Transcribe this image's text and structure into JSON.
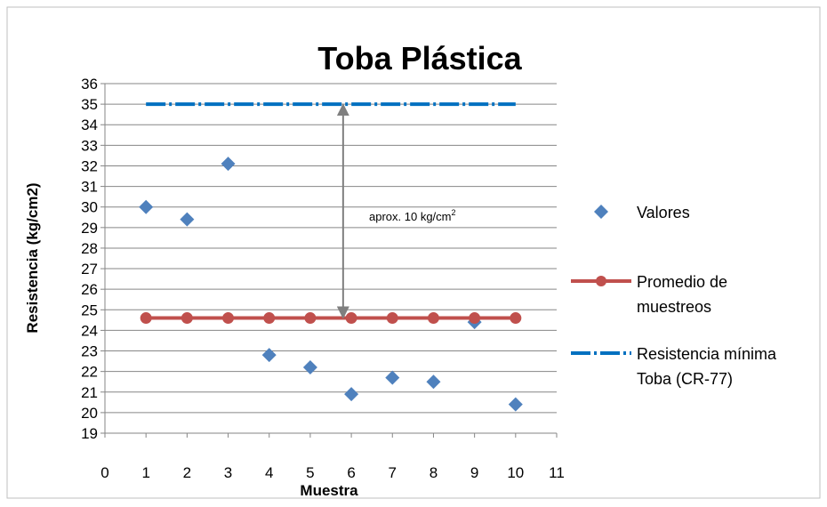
{
  "chart_data": {
    "type": "scatter",
    "title": "Toba Plástica",
    "xlabel": "Muestra",
    "ylabel": "Resistencia (kg/cm2)",
    "xlim": [
      0,
      11
    ],
    "ylim": [
      19,
      36
    ],
    "x_ticks": [
      "0",
      "1",
      "2",
      "3",
      "4",
      "5",
      "6",
      "7",
      "8",
      "9",
      "10",
      "11"
    ],
    "y_ticks": [
      "19",
      "20",
      "21",
      "22",
      "23",
      "24",
      "25",
      "26",
      "27",
      "28",
      "29",
      "30",
      "31",
      "32",
      "33",
      "34",
      "35",
      "36"
    ],
    "grid": true,
    "legend_position": "right",
    "series": [
      {
        "name": "Valores",
        "kind": "markers",
        "marker": "diamond",
        "color": "#4F81BD",
        "x": [
          1,
          2,
          3,
          4,
          5,
          6,
          7,
          8,
          9,
          10
        ],
        "y": [
          30.0,
          29.4,
          32.1,
          22.8,
          22.2,
          20.9,
          21.7,
          21.5,
          24.4,
          20.4
        ]
      },
      {
        "name": "Promedio de muestreos",
        "legend_lines": [
          "Promedio de",
          "muestreos"
        ],
        "kind": "line-markers",
        "marker": "circle",
        "color": "#C0504D",
        "x": [
          1,
          2,
          3,
          4,
          5,
          6,
          7,
          8,
          9,
          10
        ],
        "y": [
          24.6,
          24.6,
          24.6,
          24.6,
          24.6,
          24.6,
          24.6,
          24.6,
          24.6,
          24.6
        ]
      },
      {
        "name": "Resistencia mínima Toba (CR-77)",
        "legend_lines": [
          "Resistencia mínima",
          "Toba (CR-77)"
        ],
        "kind": "dash-dot-line",
        "color": "#0070C0",
        "x": [
          1,
          10
        ],
        "y": [
          35,
          35
        ]
      }
    ],
    "annotation": {
      "text": "aprox. 10 kg/cm",
      "superscript": "2",
      "arrow": {
        "x": 5.8,
        "y_from": 24.6,
        "y_to": 35
      }
    }
  }
}
